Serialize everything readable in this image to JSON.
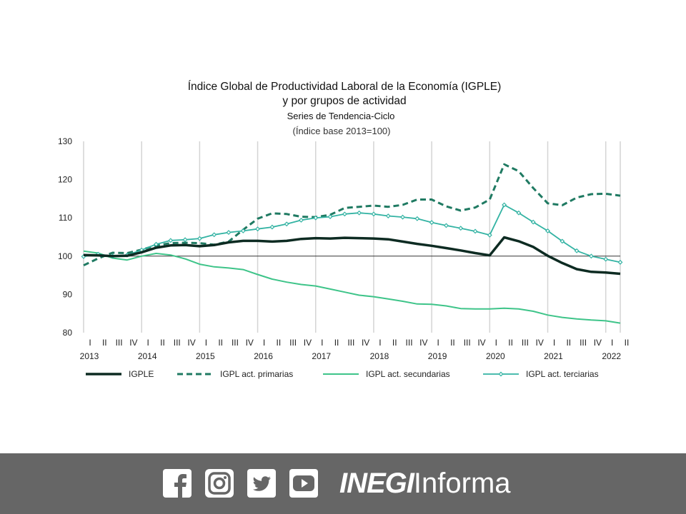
{
  "chart_data": {
    "type": "line",
    "title": "Índice Global de Productividad Laboral de la Economía (IGPLE)",
    "title_line2": "y por grupos de actividad",
    "subtitle": "Series de Tendencia-Ciclo",
    "subtitle2": "(Índice base 2013=100)",
    "ylim": [
      80,
      130
    ],
    "yticks": [
      80,
      90,
      100,
      110,
      120,
      130
    ],
    "quarters": [
      "I",
      "II",
      "III",
      "IV",
      "I",
      "II",
      "III",
      "IV",
      "I",
      "II",
      "III",
      "IV",
      "I",
      "II",
      "III",
      "IV",
      "I",
      "II",
      "III",
      "IV",
      "I",
      "II",
      "III",
      "IV",
      "I",
      "II",
      "III",
      "IV",
      "I",
      "II",
      "III",
      "IV",
      "I",
      "II",
      "III",
      "IV",
      "I",
      "II"
    ],
    "years": [
      "2013",
      "2014",
      "2015",
      "2016",
      "2017",
      "2018",
      "2019",
      "2020",
      "2021",
      "2022"
    ],
    "reference_line": 100,
    "series": [
      {
        "name": "IGPLE",
        "color": "#0d2b22",
        "style": "solid-thick",
        "values": [
          100.3,
          100.2,
          100.0,
          100.1,
          101.0,
          102.2,
          102.8,
          102.9,
          102.6,
          102.9,
          103.6,
          104.0,
          104.0,
          103.8,
          104.0,
          104.5,
          104.7,
          104.6,
          104.8,
          104.7,
          104.6,
          104.4,
          103.8,
          103.2,
          102.7,
          102.1,
          101.5,
          100.8,
          100.2,
          104.9,
          103.9,
          102.4,
          100.1,
          98.2,
          96.6,
          95.9,
          95.7,
          95.4
        ]
      },
      {
        "name": "IGPL act. primarias",
        "color": "#1f7a62",
        "style": "dashed",
        "values": [
          97.6,
          99.4,
          100.9,
          100.8,
          101.7,
          102.8,
          103.4,
          103.5,
          103.4,
          103.0,
          103.8,
          106.9,
          109.8,
          111.2,
          111.0,
          110.3,
          110.2,
          110.8,
          112.6,
          112.9,
          113.2,
          112.9,
          113.4,
          114.8,
          114.8,
          113.0,
          111.9,
          112.7,
          114.8,
          124.0,
          122.2,
          117.8,
          113.8,
          113.3,
          115.3,
          116.2,
          116.3,
          115.8
        ]
      },
      {
        "name": "IGPL act. secundarias",
        "color": "#3ec489",
        "style": "solid-thin",
        "values": [
          101.3,
          100.8,
          99.5,
          99.0,
          100.0,
          100.7,
          100.3,
          99.3,
          97.9,
          97.2,
          96.9,
          96.5,
          95.2,
          94.0,
          93.2,
          92.6,
          92.2,
          91.4,
          90.6,
          89.8,
          89.4,
          88.8,
          88.2,
          87.5,
          87.4,
          87.0,
          86.3,
          86.2,
          86.2,
          86.4,
          86.2,
          85.6,
          84.6,
          84.0,
          83.6,
          83.3,
          83.1,
          82.5
        ]
      },
      {
        "name": "IGPL act. terciarias",
        "color": "#33b3a3",
        "style": "diamond",
        "values": [
          99.9,
          100.5,
          100.0,
          100.3,
          101.6,
          103.1,
          104.1,
          104.3,
          104.6,
          105.6,
          106.2,
          106.6,
          107.1,
          107.6,
          108.4,
          109.4,
          110.0,
          110.3,
          111.0,
          111.3,
          111.0,
          110.5,
          110.2,
          109.8,
          108.8,
          108.0,
          107.3,
          106.5,
          105.5,
          113.4,
          111.3,
          108.9,
          106.6,
          103.9,
          101.4,
          100.0,
          99.2,
          98.4
        ]
      }
    ]
  },
  "footer": {
    "brand_bold": "INEGI",
    "brand_light": "Informa",
    "social_icons": [
      "facebook-icon",
      "instagram-icon",
      "twitter-icon",
      "youtube-icon"
    ]
  }
}
